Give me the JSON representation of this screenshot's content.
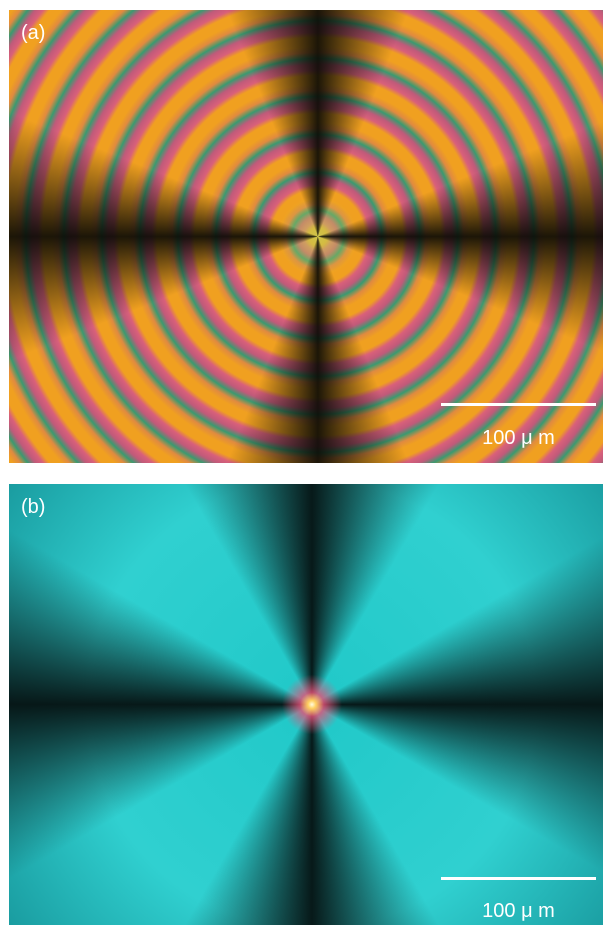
{
  "panels": [
    {
      "label": "(a)",
      "scale_bar": "100 μ m"
    },
    {
      "label": "(b)",
      "scale_bar": "100 μ m"
    }
  ]
}
